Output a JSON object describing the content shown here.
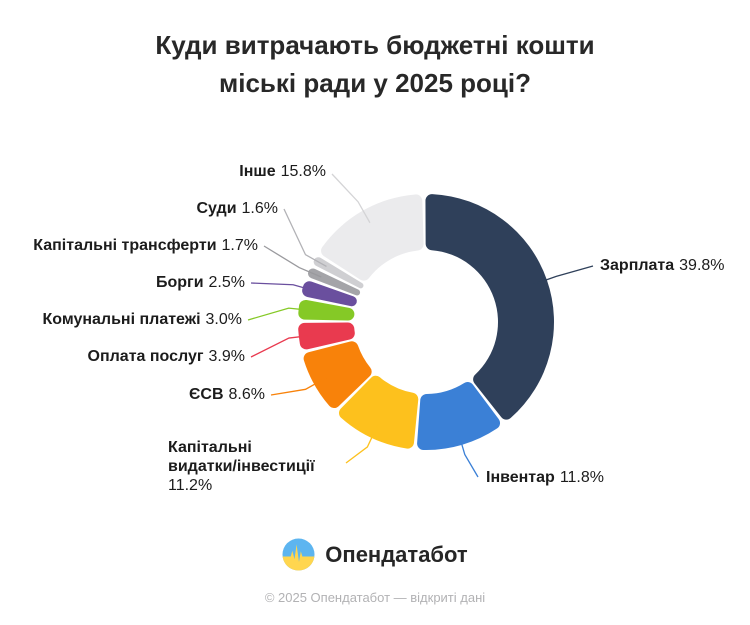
{
  "title": {
    "line1": "Куди витрачають бюджетні кошти",
    "line2": "міські ради у 2025 році?"
  },
  "chart_data": {
    "type": "pie",
    "donut": true,
    "title": "Куди витрачають бюджетні кошти міські ради у 2025 році?",
    "unit": "%",
    "label_position": "outside",
    "slices": [
      {
        "id": "zarplata",
        "label": "Зарплата",
        "value": 39.8,
        "color": "#2f405a"
      },
      {
        "id": "inventar",
        "label": "Інвентар",
        "value": 11.8,
        "color": "#3b80d6"
      },
      {
        "id": "kapvydatky",
        "label": "Капітальні видатки/інвестиції",
        "value": 11.2,
        "color": "#fdc11d"
      },
      {
        "id": "esv",
        "label": "ЄСВ",
        "value": 8.6,
        "color": "#f8820a"
      },
      {
        "id": "oplata",
        "label": "Оплата послуг",
        "value": 3.9,
        "color": "#e93a4f"
      },
      {
        "id": "komunalni",
        "label": "Комунальні платежі",
        "value": 3.0,
        "color": "#85c926"
      },
      {
        "id": "borgy",
        "label": "Борги",
        "value": 2.5,
        "color": "#6a4f9e"
      },
      {
        "id": "kaptransferty",
        "label": "Капітальні трансферти",
        "value": 1.7,
        "color": "#a4a4a8"
      },
      {
        "id": "sudy",
        "label": "Суди",
        "value": 1.6,
        "color": "#cfcfd2"
      },
      {
        "id": "inshe",
        "label": "Інше",
        "value": 15.8,
        "color": "#ebebed"
      }
    ]
  },
  "logo": {
    "text": "Опендатабот"
  },
  "footer": {
    "text": "© 2025 Опендатабот — відкриті дані"
  }
}
